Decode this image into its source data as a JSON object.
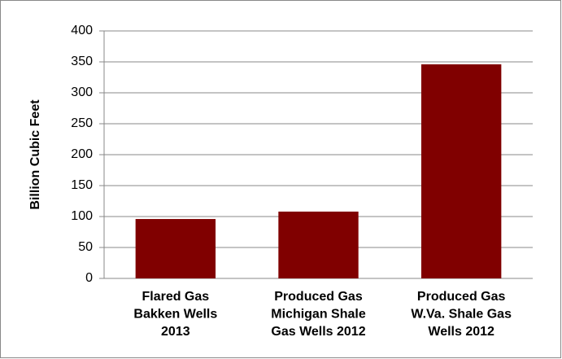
{
  "chart_data": {
    "type": "bar",
    "y_label": "Billion Cubic Feet",
    "categories": [
      [
        "Flared Gas",
        "Bakken Wells",
        "2013"
      ],
      [
        "Produced Gas",
        "Michigan Shale",
        "Gas Wells 2012"
      ],
      [
        "Produced Gas",
        "W.Va. Shale Gas",
        "Wells 2012"
      ]
    ],
    "values": [
      96,
      108,
      346
    ],
    "color": "#800000",
    "ylim": [
      0,
      400
    ],
    "yticks": [
      0,
      50,
      100,
      150,
      200,
      250,
      300,
      350,
      400
    ],
    "grid": true
  }
}
